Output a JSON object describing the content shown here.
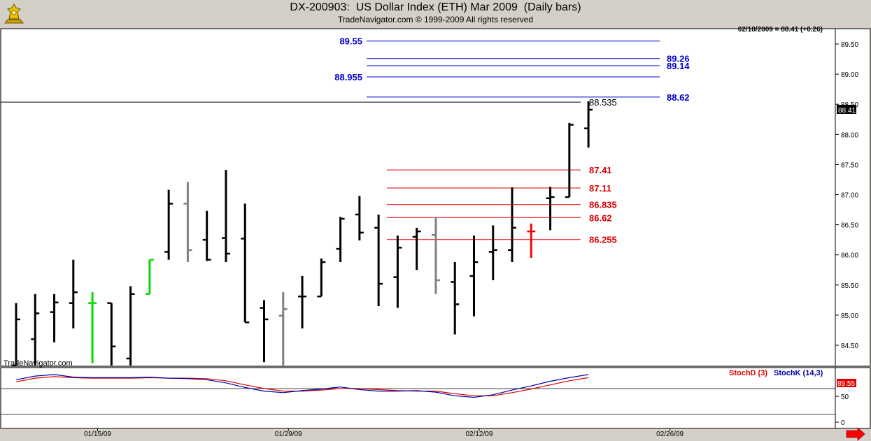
{
  "header": {
    "title": "DX-200903:  US Dollar Index (ETH) Mar 2009  (Daily bars)",
    "subtitle": "TradeNavigator.com © 1999-2009 All rights reserved",
    "status": "02/18/2009 = 88.41 (+0.26)",
    "watermark": "TradeNavigator.com"
  },
  "chart_data": [
    {
      "type": "bar",
      "subtype": "ohlc",
      "ylim": [
        84.2,
        89.7
      ],
      "y_ticks": [
        "84.50",
        "85.00",
        "85.50",
        "86.00",
        "86.50",
        "87.00",
        "87.50",
        "88.00",
        "88.50",
        "89.00",
        "89.50"
      ],
      "x_ticks": [
        "01/15/09",
        "01/29/09",
        "02/12/09",
        "02/26/09"
      ],
      "last_price_label": "88.41",
      "colors": {
        "up": "#00dd00",
        "down": "#000000",
        "neutral": "#808080",
        "current": "#ff0000",
        "blue_level": "#0000cc",
        "red_level": "#dd0000"
      },
      "bars": [
        {
          "o": 84.15,
          "h": 85.2,
          "l": 84.15,
          "c": 84.93,
          "color": "#000000"
        },
        {
          "o": 84.6,
          "h": 85.35,
          "l": 84.15,
          "c": 85.03,
          "color": "#000000"
        },
        {
          "o": 85.05,
          "h": 85.35,
          "l": 84.55,
          "c": 85.21,
          "color": "#000000"
        },
        {
          "o": 85.2,
          "h": 85.92,
          "l": 84.78,
          "c": 85.38,
          "color": "#000000"
        },
        {
          "o": 85.2,
          "h": 85.38,
          "l": 84.2,
          "c": 85.2,
          "color": "#00dd00"
        },
        {
          "o": 85.2,
          "h": 85.2,
          "l": 84.15,
          "c": 84.48,
          "color": "#000000"
        },
        {
          "o": 84.28,
          "h": 85.48,
          "l": 84.15,
          "c": 85.35,
          "color": "#000000"
        },
        {
          "o": 85.35,
          "h": 85.92,
          "l": 85.35,
          "c": 85.92,
          "color": "#00dd00"
        },
        {
          "o": 86.05,
          "h": 87.08,
          "l": 85.92,
          "c": 86.85,
          "color": "#000000"
        },
        {
          "o": 86.85,
          "h": 87.21,
          "l": 85.88,
          "c": 86.08,
          "color": "#808080"
        },
        {
          "o": 86.25,
          "h": 86.73,
          "l": 85.9,
          "c": 85.92,
          "color": "#000000"
        },
        {
          "o": 86.28,
          "h": 87.41,
          "l": 85.88,
          "c": 86.02,
          "color": "#000000"
        },
        {
          "o": 86.27,
          "h": 86.85,
          "l": 84.88,
          "c": 84.88,
          "color": "#000000"
        },
        {
          "o": 85.12,
          "h": 85.25,
          "l": 84.22,
          "c": 84.93,
          "color": "#000000"
        },
        {
          "o": 84.99,
          "h": 85.38,
          "l": 84.15,
          "c": 85.1,
          "color": "#808080"
        },
        {
          "o": 85.31,
          "h": 85.65,
          "l": 84.78,
          "c": 85.31,
          "color": "#000000"
        },
        {
          "o": 85.31,
          "h": 85.94,
          "l": 85.31,
          "c": 85.88,
          "color": "#000000"
        },
        {
          "o": 86.1,
          "h": 86.63,
          "l": 85.88,
          "c": 86.6,
          "color": "#000000"
        },
        {
          "o": 86.67,
          "h": 86.98,
          "l": 86.24,
          "c": 86.37,
          "color": "#000000"
        },
        {
          "o": 86.45,
          "h": 86.67,
          "l": 85.15,
          "c": 85.52,
          "color": "#000000"
        },
        {
          "o": 85.63,
          "h": 86.32,
          "l": 85.12,
          "c": 86.12,
          "color": "#000000"
        },
        {
          "o": 86.3,
          "h": 86.45,
          "l": 85.75,
          "c": 86.39,
          "color": "#000000"
        },
        {
          "o": 86.33,
          "h": 86.63,
          "l": 85.35,
          "c": 85.58,
          "color": "#808080"
        },
        {
          "o": 85.55,
          "h": 85.88,
          "l": 84.68,
          "c": 85.18,
          "color": "#000000"
        },
        {
          "o": 85.65,
          "h": 86.32,
          "l": 84.98,
          "c": 85.88,
          "color": "#000000"
        },
        {
          "o": 86.05,
          "h": 86.49,
          "l": 85.58,
          "c": 86.08,
          "color": "#000000"
        },
        {
          "o": 86.08,
          "h": 87.12,
          "l": 85.88,
          "c": 86.45,
          "color": "#000000"
        },
        {
          "o": 86.39,
          "h": 86.52,
          "l": 85.95,
          "c": 86.39,
          "color": "#ff0000"
        },
        {
          "o": 86.94,
          "h": 87.13,
          "l": 86.41,
          "c": 86.96,
          "color": "#000000"
        },
        {
          "o": 86.96,
          "h": 88.19,
          "l": 86.96,
          "c": 88.16,
          "color": "#000000"
        },
        {
          "o": 88.1,
          "h": 88.55,
          "l": 87.78,
          "c": 88.41,
          "color": "#000000"
        }
      ],
      "levels": [
        {
          "value": 89.55,
          "label": "89.55",
          "color": "#0000cc",
          "label_side": "left"
        },
        {
          "value": 89.26,
          "label": "89.26",
          "color": "#0000cc",
          "label_side": "right"
        },
        {
          "value": 89.14,
          "label": "89.14",
          "color": "#0000cc",
          "label_side": "right"
        },
        {
          "value": 88.955,
          "label": "88.955",
          "color": "#0000cc",
          "label_side": "left"
        },
        {
          "value": 88.62,
          "label": "88.62",
          "color": "#0000cc",
          "label_side": "right"
        },
        {
          "value": 88.535,
          "label": "88.535",
          "color": "#000000",
          "label_side": "right"
        },
        {
          "value": 87.41,
          "label": "87.41",
          "color": "#dd0000",
          "label_side": "right"
        },
        {
          "value": 87.11,
          "label": "87.11",
          "color": "#dd0000",
          "label_side": "right"
        },
        {
          "value": 86.835,
          "label": "86.835",
          "color": "#dd0000",
          "label_side": "right"
        },
        {
          "value": 86.62,
          "label": "86.62",
          "color": "#dd0000",
          "label_side": "right"
        },
        {
          "value": 86.255,
          "label": "86.255",
          "color": "#dd0000",
          "label_side": "right"
        }
      ]
    },
    {
      "type": "line",
      "ylim": [
        0,
        100
      ],
      "y_ticks": [
        "0",
        "50"
      ],
      "last_value_label": "89.55",
      "series": [
        {
          "name": "StochD (3)",
          "color": "#dd0000",
          "values": [
            78,
            85,
            88,
            86,
            85,
            85,
            85,
            86,
            85,
            85,
            84,
            80,
            72,
            65,
            60,
            60,
            62,
            65,
            65,
            63,
            61,
            60,
            60,
            55,
            51,
            51,
            57,
            64,
            72,
            80,
            86
          ]
        },
        {
          "name": "StochK (14,3)",
          "color": "#0000aa",
          "values": [
            82,
            89,
            92,
            87,
            86,
            86,
            86,
            87,
            85,
            84,
            82,
            76,
            67,
            60,
            57,
            61,
            64,
            68,
            63,
            60,
            60,
            61,
            58,
            51,
            48,
            53,
            62,
            70,
            79,
            86,
            92
          ]
        }
      ]
    }
  ]
}
